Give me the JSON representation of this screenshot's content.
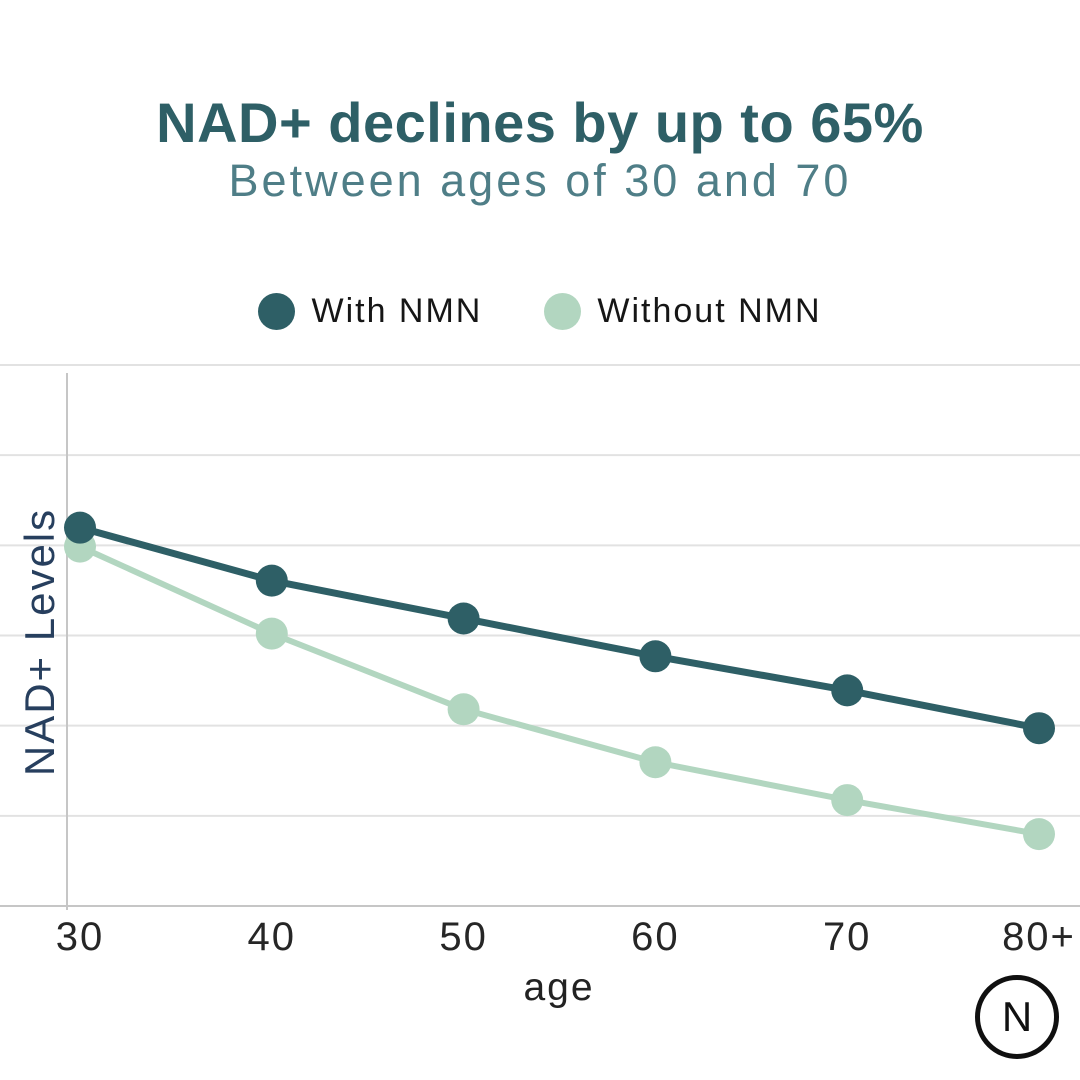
{
  "chart_data": {
    "type": "line",
    "title": "NAD+ declines by up to 65%",
    "subtitle": "Between ages of 30 and 70",
    "xlabel": "age",
    "ylabel": "NAD+ Levels",
    "categories": [
      "30",
      "40",
      "50",
      "60",
      "70",
      "80+"
    ],
    "series": [
      {
        "name": "With NMN",
        "color": "#2e5f66",
        "values": [
          100,
          86,
          76,
          66,
          57,
          47
        ]
      },
      {
        "name": "Without NMN",
        "color": "#b2d6c0",
        "values": [
          95,
          72,
          52,
          38,
          28,
          19
        ]
      }
    ],
    "ylim": [
      0,
      143
    ],
    "grid": true,
    "gridline_count": 7,
    "legend_position": "top",
    "colors": {
      "grid": "#e2e2e2",
      "axis": "#c6c6c6",
      "tick_label": "#262626",
      "ylabel": "#273f5e",
      "xlabel": "#222222"
    }
  },
  "footer": {
    "logo_letter": "N"
  }
}
